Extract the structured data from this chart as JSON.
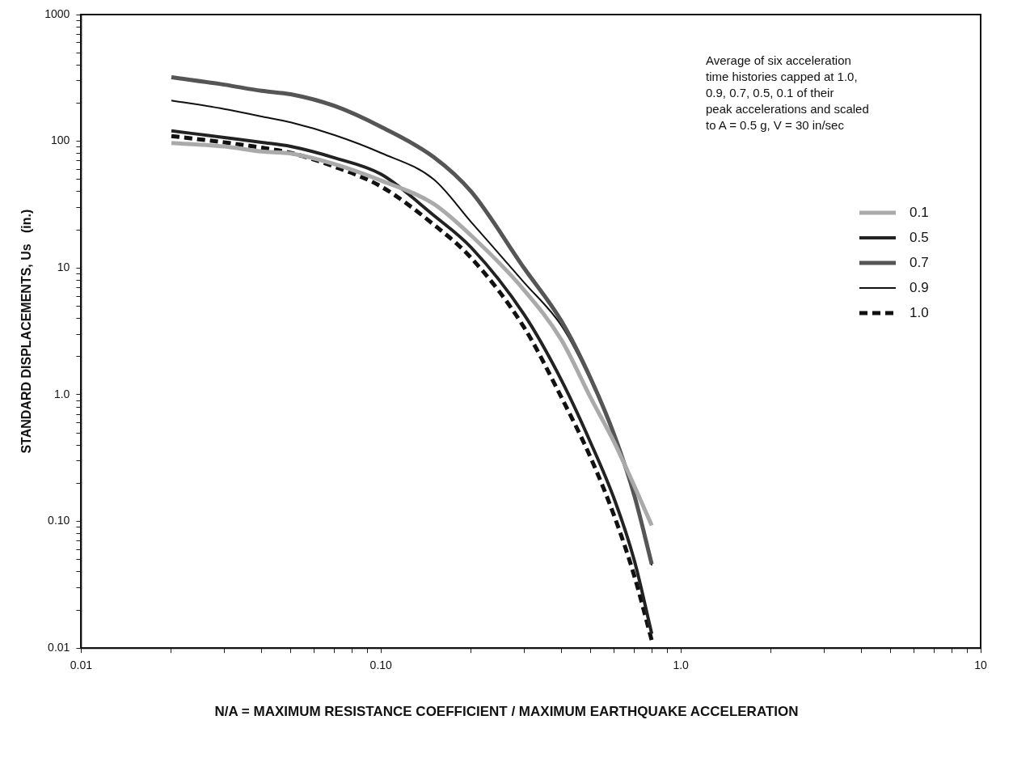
{
  "chart_data": {
    "type": "line",
    "ylabel": "STANDARD DISPLACEMENTS, Us   (in.)",
    "xlabel": "N/A = MAXIMUM RESISTANCE COEFFICIENT / MAXIMUM EARTHQUAKE ACCELERATION",
    "annotations": [
      "Average of six acceleration\ntime histories capped at 1.0,\n0.9, 0.7, 0.5, 0.1 of their\npeak accelerations and scaled\nto A = 0.5 g, V = 30 in/sec"
    ],
    "log": "xy",
    "legend": "right",
    "marker": "none",
    "grid": false,
    "xlim": [
      0.01,
      10
    ],
    "ylim": [
      0.01,
      1000
    ],
    "xticks": [
      {
        "value": 0.01,
        "label": "0.01"
      },
      {
        "value": 0.02,
        "label": null
      },
      {
        "value": 0.03,
        "label": null
      },
      {
        "value": 0.04,
        "label": null
      },
      {
        "value": 0.05,
        "label": null
      },
      {
        "value": 0.06,
        "label": null
      },
      {
        "value": 0.07,
        "label": null
      },
      {
        "value": 0.08,
        "label": null
      },
      {
        "value": 0.09,
        "label": null
      },
      {
        "value": 0.1,
        "label": "0.10"
      },
      {
        "value": 0.2,
        "label": null
      },
      {
        "value": 0.3,
        "label": null
      },
      {
        "value": 0.4,
        "label": null
      },
      {
        "value": 0.5,
        "label": null
      },
      {
        "value": 0.6,
        "label": null
      },
      {
        "value": 0.7,
        "label": null
      },
      {
        "value": 0.8,
        "label": null
      },
      {
        "value": 0.9,
        "label": null
      },
      {
        "value": 1,
        "label": "1.0"
      },
      {
        "value": 2,
        "label": null
      },
      {
        "value": 3,
        "label": null
      },
      {
        "value": 4,
        "label": null
      },
      {
        "value": 5,
        "label": null
      },
      {
        "value": 6,
        "label": null
      },
      {
        "value": 7,
        "label": null
      },
      {
        "value": 8,
        "label": null
      },
      {
        "value": 9,
        "label": null
      },
      {
        "value": 10,
        "label": "10"
      }
    ],
    "yticks": [
      {
        "value": 0.01,
        "label": "0.01"
      },
      {
        "value": 0.02,
        "label": null
      },
      {
        "value": 0.03,
        "label": null
      },
      {
        "value": 0.04,
        "label": null
      },
      {
        "value": 0.05,
        "label": null
      },
      {
        "value": 0.06,
        "label": null
      },
      {
        "value": 0.07,
        "label": null
      },
      {
        "value": 0.08,
        "label": null
      },
      {
        "value": 0.09,
        "label": null
      },
      {
        "value": 0.1,
        "label": "0.10"
      },
      {
        "value": 0.2,
        "label": null
      },
      {
        "value": 0.3,
        "label": null
      },
      {
        "value": 0.4,
        "label": null
      },
      {
        "value": 0.5,
        "label": null
      },
      {
        "value": 0.6,
        "label": null
      },
      {
        "value": 0.7,
        "label": null
      },
      {
        "value": 0.8,
        "label": null
      },
      {
        "value": 0.9,
        "label": null
      },
      {
        "value": 1,
        "label": "1.0"
      },
      {
        "value": 2,
        "label": null
      },
      {
        "value": 3,
        "label": null
      },
      {
        "value": 4,
        "label": null
      },
      {
        "value": 5,
        "label": null
      },
      {
        "value": 6,
        "label": null
      },
      {
        "value": 7,
        "label": null
      },
      {
        "value": 8,
        "label": null
      },
      {
        "value": 9,
        "label": null
      },
      {
        "value": 10,
        "label": "10"
      },
      {
        "value": 20,
        "label": null
      },
      {
        "value": 30,
        "label": null
      },
      {
        "value": 40,
        "label": null
      },
      {
        "value": 50,
        "label": null
      },
      {
        "value": 60,
        "label": null
      },
      {
        "value": 70,
        "label": null
      },
      {
        "value": 80,
        "label": null
      },
      {
        "value": 90,
        "label": null
      },
      {
        "value": 100,
        "label": "100"
      },
      {
        "value": 200,
        "label": null
      },
      {
        "value": 300,
        "label": null
      },
      {
        "value": 400,
        "label": null
      },
      {
        "value": 500,
        "label": null
      },
      {
        "value": 600,
        "label": null
      },
      {
        "value": 700,
        "label": null
      },
      {
        "value": 800,
        "label": null
      },
      {
        "value": 900,
        "label": null
      },
      {
        "value": 1000,
        "label": "1000"
      }
    ],
    "x": [
      0.02,
      0.03,
      0.04,
      0.05,
      0.07,
      0.1,
      0.15,
      0.2,
      0.3,
      0.4,
      0.5,
      0.6,
      0.7,
      0.8
    ],
    "series": [
      {
        "name": "0.1",
        "color": "#aaaaaa",
        "line_style": "solid",
        "values": [
          97,
          91,
          83,
          80,
          66,
          49,
          32,
          18,
          6.7,
          2.7,
          0.95,
          0.42,
          0.19,
          0.093
        ]
      },
      {
        "name": "0.5",
        "color": "#222222",
        "line_style": "solid",
        "values": [
          121,
          107,
          98,
          91,
          74,
          55,
          26,
          14.5,
          4.3,
          1.3,
          0.42,
          0.15,
          0.049,
          0.013
        ]
      },
      {
        "name": "0.7",
        "color": "#555555",
        "line_style": "solid",
        "values": [
          320,
          280,
          250,
          235,
          190,
          130,
          75,
          40,
          10,
          3.8,
          1.35,
          0.48,
          0.16,
          0.046
        ]
      },
      {
        "name": "0.9",
        "color": "#111111",
        "line_style": "solid",
        "values": [
          210,
          180,
          157,
          141,
          112,
          81,
          50,
          23,
          7.7,
          3.5,
          1.3,
          0.47,
          0.16,
          0.045
        ]
      },
      {
        "name": "1.0",
        "color": "#111111",
        "line_style": "dashed",
        "values": [
          110,
          98,
          89,
          81,
          63,
          44,
          22,
          12,
          3.4,
          0.95,
          0.32,
          0.11,
          0.037,
          0.0115
        ]
      }
    ]
  }
}
